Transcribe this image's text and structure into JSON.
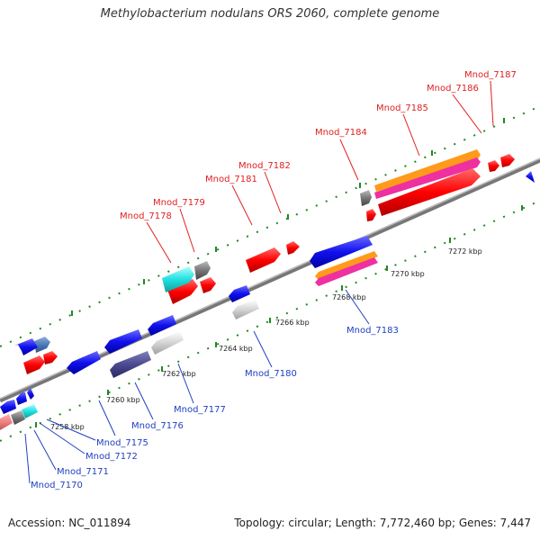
{
  "header": {
    "title": "Methylobacterium nodulans ORS 2060, complete genome"
  },
  "footer": {
    "accession": "Accession: NC_011894",
    "summary": "Topology: circular; Length: 7,772,460 bp; Genes: 7,447"
  },
  "scale_labels": [
    "7258 kbp",
    "7260 kbp",
    "7262 kbp",
    "7264 kbp",
    "7266 kbp",
    "7268 kbp",
    "7270 kbp",
    "7272 kbp"
  ],
  "gene_labels_forward": [
    "Mnod_7178",
    "Mnod_7179",
    "Mnod_7181",
    "Mnod_7182",
    "Mnod_7184",
    "Mnod_7185",
    "Mnod_7186",
    "Mnod_7187"
  ],
  "gene_labels_reverse": [
    "Mnod_7170",
    "Mnod_7171",
    "Mnod_7172",
    "Mnod_7175",
    "Mnod_7176",
    "Mnod_7177",
    "Mnod_7180",
    "Mnod_7183"
  ],
  "colors": {
    "forward_label": "#e02020",
    "reverse_label": "#2040c0",
    "backbone": "#888888",
    "tick": "#228822"
  }
}
